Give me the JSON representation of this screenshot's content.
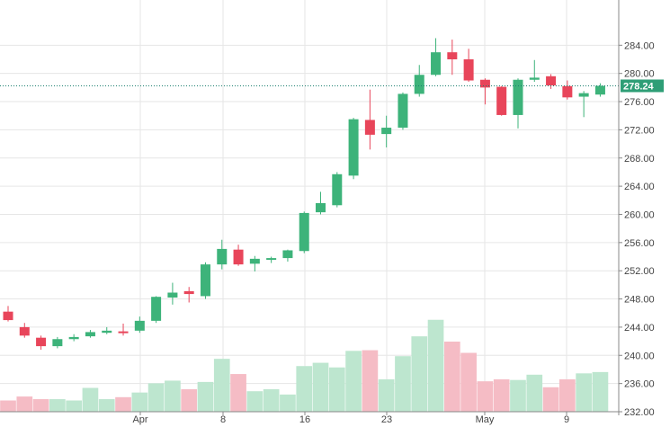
{
  "chart_data": {
    "type": "candlestick",
    "x_tick_labels": [
      "Apr",
      "8",
      "16",
      "23",
      "May",
      "9"
    ],
    "y_tick_labels": [
      "232.00",
      "236.00",
      "240.00",
      "244.00",
      "248.00",
      "252.00",
      "256.00",
      "260.00",
      "264.00",
      "268.00",
      "272.00",
      "276.00",
      "280.00",
      "284.00"
    ],
    "ylim": [
      230.5,
      287.5
    ],
    "grid": true,
    "last_price_label": "278.24",
    "last_price": 278.24,
    "colors": {
      "up": "#3db37a",
      "down": "#e8455a",
      "volume_up": "#bde6cf",
      "volume_down": "#f5bcc5",
      "grid": "#e6e6e6",
      "axis": "#888888",
      "price_line": "#1b7f6f",
      "price_label_bg": "#2e9e76"
    },
    "series": [
      {
        "o": 246.2,
        "h": 247.0,
        "l": 244.8,
        "c": 245.0,
        "v": 0.17
      },
      {
        "o": 244.0,
        "h": 244.6,
        "l": 242.5,
        "c": 242.8,
        "v": 0.23
      },
      {
        "o": 242.5,
        "h": 242.8,
        "l": 240.8,
        "c": 241.3,
        "v": 0.19
      },
      {
        "o": 241.3,
        "h": 242.6,
        "l": 241.0,
        "c": 242.3,
        "v": 0.19
      },
      {
        "o": 242.3,
        "h": 243.0,
        "l": 242.0,
        "c": 242.6,
        "v": 0.17
      },
      {
        "o": 242.7,
        "h": 243.6,
        "l": 242.5,
        "c": 243.3,
        "v": 0.36
      },
      {
        "o": 243.2,
        "h": 244.0,
        "l": 243.0,
        "c": 243.5,
        "v": 0.19
      },
      {
        "o": 243.4,
        "h": 244.5,
        "l": 242.8,
        "c": 243.2,
        "v": 0.22
      },
      {
        "o": 243.5,
        "h": 245.5,
        "l": 243.2,
        "c": 244.9,
        "v": 0.29
      },
      {
        "o": 244.9,
        "h": 248.4,
        "l": 244.6,
        "c": 248.3,
        "v": 0.43
      },
      {
        "o": 248.2,
        "h": 250.3,
        "l": 247.2,
        "c": 248.9,
        "v": 0.47
      },
      {
        "o": 249.1,
        "h": 249.7,
        "l": 247.5,
        "c": 248.7,
        "v": 0.34
      },
      {
        "o": 248.4,
        "h": 253.2,
        "l": 248.0,
        "c": 252.9,
        "v": 0.45
      },
      {
        "o": 252.9,
        "h": 256.4,
        "l": 252.2,
        "c": 255.1,
        "v": 0.8
      },
      {
        "o": 255.0,
        "h": 255.7,
        "l": 252.7,
        "c": 252.9,
        "v": 0.57
      },
      {
        "o": 253.0,
        "h": 254.1,
        "l": 251.9,
        "c": 253.7,
        "v": 0.31
      },
      {
        "o": 253.6,
        "h": 254.0,
        "l": 253.1,
        "c": 253.8,
        "v": 0.34
      },
      {
        "o": 253.8,
        "h": 255.0,
        "l": 253.3,
        "c": 254.9,
        "v": 0.26
      },
      {
        "o": 254.8,
        "h": 260.4,
        "l": 254.5,
        "c": 260.2,
        "v": 0.69
      },
      {
        "o": 260.3,
        "h": 263.2,
        "l": 260.0,
        "c": 261.6,
        "v": 0.74
      },
      {
        "o": 261.3,
        "h": 266.0,
        "l": 261.0,
        "c": 265.7,
        "v": 0.67
      },
      {
        "o": 265.5,
        "h": 273.7,
        "l": 265.0,
        "c": 273.5,
        "v": 0.92
      },
      {
        "o": 273.4,
        "h": 277.7,
        "l": 269.2,
        "c": 271.3,
        "v": 0.93
      },
      {
        "o": 271.4,
        "h": 274.0,
        "l": 269.5,
        "c": 272.3,
        "v": 0.49
      },
      {
        "o": 272.3,
        "h": 277.3,
        "l": 272.0,
        "c": 277.1,
        "v": 0.84
      },
      {
        "o": 277.1,
        "h": 281.2,
        "l": 276.7,
        "c": 279.8,
        "v": 1.14
      },
      {
        "o": 279.8,
        "h": 285.0,
        "l": 279.6,
        "c": 283.0,
        "v": 1.39
      },
      {
        "o": 283.0,
        "h": 284.8,
        "l": 279.8,
        "c": 282.0,
        "v": 1.06
      },
      {
        "o": 282.0,
        "h": 283.5,
        "l": 278.8,
        "c": 279.0,
        "v": 0.89
      },
      {
        "o": 279.1,
        "h": 279.3,
        "l": 275.6,
        "c": 278.0,
        "v": 0.46
      },
      {
        "o": 278.1,
        "h": 278.2,
        "l": 274.0,
        "c": 274.1,
        "v": 0.49
      },
      {
        "o": 274.1,
        "h": 279.3,
        "l": 272.2,
        "c": 279.1,
        "v": 0.48
      },
      {
        "o": 279.1,
        "h": 281.9,
        "l": 278.8,
        "c": 279.4,
        "v": 0.56
      },
      {
        "o": 279.6,
        "h": 279.9,
        "l": 277.8,
        "c": 278.3,
        "v": 0.37
      },
      {
        "o": 278.2,
        "h": 279.0,
        "l": 276.3,
        "c": 276.6,
        "v": 0.49
      },
      {
        "o": 276.7,
        "h": 277.5,
        "l": 273.8,
        "c": 277.2,
        "v": 0.58
      },
      {
        "o": 277.0,
        "h": 278.6,
        "l": 276.7,
        "c": 278.24,
        "v": 0.6
      }
    ]
  }
}
